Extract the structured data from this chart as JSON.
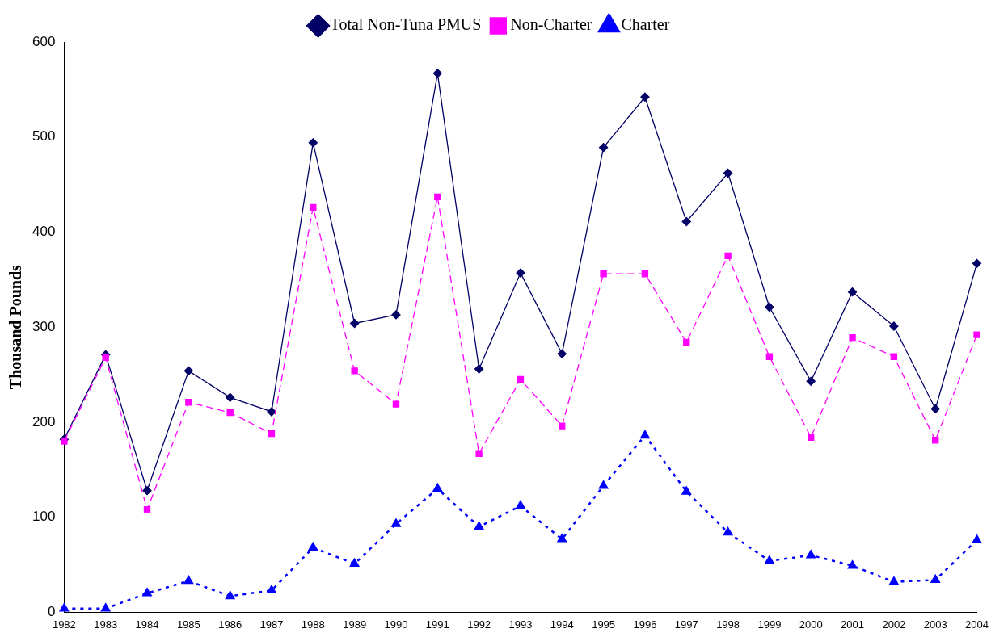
{
  "chart_data": {
    "type": "line",
    "ylabel": "Thousand Pounds",
    "categories": [
      "1982",
      "1983",
      "1984",
      "1985",
      "1986",
      "1987",
      "1988",
      "1989",
      "1990",
      "1991",
      "1992",
      "1993",
      "1994",
      "1995",
      "1996",
      "1997",
      "1998",
      "1999",
      "2000",
      "2001",
      "2002",
      "2003",
      "2004"
    ],
    "series": [
      {
        "name": "Total Non-Tuna PMUS",
        "color": "#000066",
        "marker": "diamond",
        "line_style": "solid",
        "values": [
          182,
          271,
          128,
          254,
          226,
          211,
          494,
          304,
          313,
          567,
          256,
          357,
          272,
          489,
          542,
          411,
          462,
          321,
          243,
          337,
          301,
          214,
          367
        ]
      },
      {
        "name": "Non-Charter",
        "color": "#ff00ff",
        "marker": "square",
        "line_style": "dashed",
        "values": [
          180,
          268,
          108,
          221,
          210,
          188,
          426,
          254,
          219,
          437,
          167,
          245,
          196,
          356,
          356,
          284,
          375,
          269,
          184,
          289,
          269,
          181,
          292
        ]
      },
      {
        "name": "Charter",
        "color": "#0000ff",
        "marker": "triangle",
        "line_style": "dotted",
        "values": [
          4,
          4,
          20,
          33,
          17,
          23,
          68,
          51,
          93,
          130,
          90,
          112,
          77,
          133,
          186,
          127,
          84,
          54,
          60,
          49,
          32,
          34,
          76
        ]
      }
    ],
    "ylim": [
      0,
      600
    ],
    "yticks": [
      0,
      100,
      200,
      300,
      400,
      500,
      600
    ],
    "grid": false,
    "legend": "top"
  }
}
